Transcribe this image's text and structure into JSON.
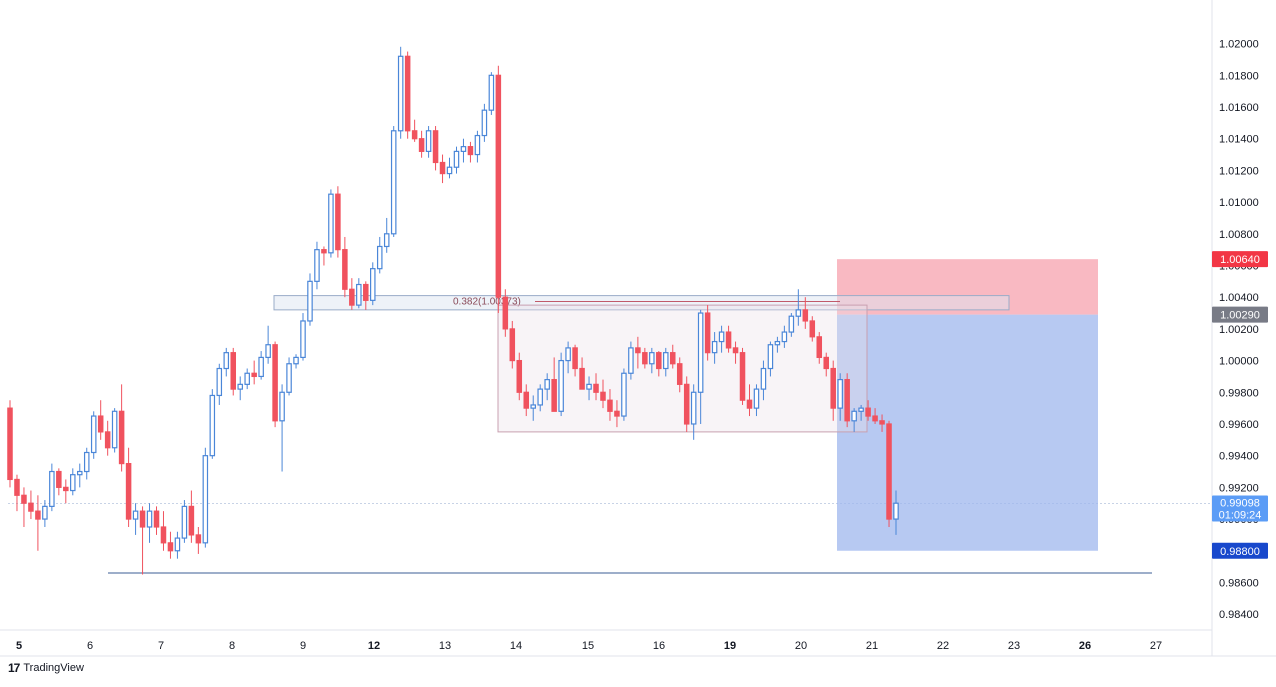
{
  "chart_data": {
    "type": "candlestick",
    "ylim": [
      0.983,
      1.0225
    ],
    "y_ticks": [
      "1.02000",
      "1.01800",
      "1.01600",
      "1.01400",
      "1.01200",
      "1.01000",
      "1.00800",
      "1.00600",
      "1.00400",
      "1.00200",
      "1.00000",
      "0.99800",
      "0.99600",
      "0.99400",
      "0.99200",
      "0.99000",
      "0.98600",
      "0.98400"
    ],
    "x_labels": [
      {
        "text": "5",
        "bold": true
      },
      {
        "text": "6",
        "bold": false
      },
      {
        "text": "7",
        "bold": false
      },
      {
        "text": "8",
        "bold": false
      },
      {
        "text": "9",
        "bold": false
      },
      {
        "text": "12",
        "bold": true
      },
      {
        "text": "13",
        "bold": false
      },
      {
        "text": "14",
        "bold": false
      },
      {
        "text": "15",
        "bold": false
      },
      {
        "text": "16",
        "bold": false
      },
      {
        "text": "19",
        "bold": true
      },
      {
        "text": "20",
        "bold": false
      },
      {
        "text": "21",
        "bold": false
      },
      {
        "text": "22",
        "bold": false
      },
      {
        "text": "23",
        "bold": false
      },
      {
        "text": "26",
        "bold": true
      },
      {
        "text": "27",
        "bold": false
      }
    ],
    "price_tags": {
      "stop": {
        "text": "1.00640",
        "color": "#f23645"
      },
      "entry": {
        "text": "1.00290",
        "color": "#787b86"
      },
      "current": {
        "text": "0.99098",
        "countdown": "01:09:24",
        "color": "#5b9cf6"
      },
      "target": {
        "text": "0.98800",
        "color": "#1848cc"
      }
    },
    "fib_annotation": "0.382(1.00373)",
    "support_level": 0.9866,
    "resistance_zone": [
      1.0032,
      1.0041
    ],
    "range_box": [
      0.9955,
      1.0035
    ],
    "position": {
      "type": "short",
      "entry": 1.0029,
      "stop": 1.0064,
      "target": 0.988
    },
    "colors": {
      "up": "#4a86d8",
      "down": "#f0525e",
      "grid": "#f0f3fa",
      "axis_text": "#131722"
    }
  },
  "branding": {
    "logo": "17",
    "name": "TradingView"
  }
}
